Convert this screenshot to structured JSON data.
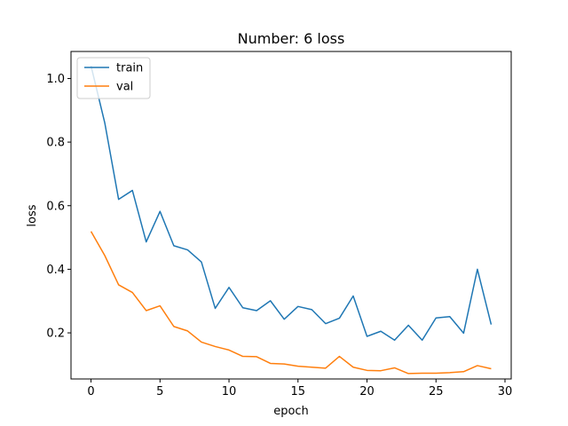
{
  "chart_data": {
    "type": "line",
    "title": "Number: 6 loss",
    "xlabel": "epoch",
    "ylabel": "loss",
    "xlim": [
      -1.45,
      30.45
    ],
    "ylim": [
      0.055,
      1.085
    ],
    "xticks": [
      0,
      5,
      10,
      15,
      20,
      25,
      30
    ],
    "yticks": [
      0.2,
      0.4,
      0.6,
      0.8,
      1.0
    ],
    "xtick_labels": [
      "0",
      "5",
      "10",
      "15",
      "20",
      "25",
      "30"
    ],
    "ytick_labels": [
      "0.2",
      "0.4",
      "0.6",
      "0.8",
      "1.0"
    ],
    "grid": false,
    "legend_position": "top-left",
    "x": [
      0,
      1,
      2,
      3,
      4,
      5,
      6,
      7,
      8,
      9,
      10,
      11,
      12,
      13,
      14,
      15,
      16,
      17,
      18,
      19,
      20,
      21,
      22,
      23,
      24,
      25,
      26,
      27,
      28,
      29
    ],
    "series": [
      {
        "name": "train",
        "color": "#1f77b4",
        "values": [
          1.04,
          0.86,
          0.62,
          0.648,
          0.486,
          0.582,
          0.474,
          0.461,
          0.423,
          0.277,
          0.343,
          0.279,
          0.27,
          0.301,
          0.243,
          0.283,
          0.273,
          0.229,
          0.246,
          0.316,
          0.189,
          0.205,
          0.177,
          0.224,
          0.177,
          0.247,
          0.251,
          0.199,
          0.4,
          0.226
        ]
      },
      {
        "name": "val",
        "color": "#ff7f0e",
        "values": [
          0.519,
          0.443,
          0.351,
          0.327,
          0.27,
          0.285,
          0.22,
          0.206,
          0.171,
          0.157,
          0.146,
          0.126,
          0.125,
          0.104,
          0.102,
          0.095,
          0.092,
          0.089,
          0.126,
          0.092,
          0.082,
          0.081,
          0.09,
          0.072,
          0.073,
          0.073,
          0.075,
          0.078,
          0.097,
          0.087
        ]
      }
    ]
  }
}
